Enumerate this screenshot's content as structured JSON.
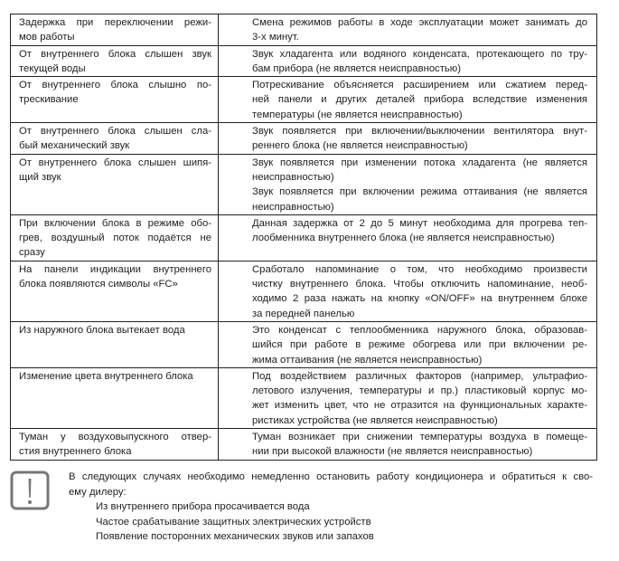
{
  "table": {
    "rows": [
      {
        "problem": [
          "Задержка при переключении режи-",
          "мов работы"
        ],
        "cause": [
          [
            "Смена режимов работы в ходе эксплуатации может занимать до",
            "3-х минут."
          ]
        ]
      },
      {
        "problem": [
          "От внутреннего блока слышен звук",
          "текущей воды"
        ],
        "cause": [
          [
            "Звук хладагента или водяного конденсата, протекающего по тру-",
            "бам прибора (не является неисправностью)"
          ]
        ]
      },
      {
        "problem": [
          "От внутреннего блока слышно по-",
          "трескивание"
        ],
        "cause": [
          [
            "Потрескивание объясняется расширением или сжатием перед-",
            "ней панели и других деталей прибора вследствие изменения",
            "температуры (не является неисправностью)"
          ]
        ]
      },
      {
        "problem": [
          "От внутреннего блока слышен сла-",
          "бый механический звук"
        ],
        "cause": [
          [
            "Звук появляется при включении/выключении вентилятора внут-",
            "реннего блока (не является неисправностью)"
          ]
        ]
      },
      {
        "problem": [
          "От внутреннего блока слышен шипя-",
          "щий звук"
        ],
        "cause": [
          [
            "Звук появляется при изменении потока хладагента (не является",
            "неисправностью)"
          ],
          [
            "Звук появляется при включении режима оттаивания (не является",
            "неисправностью)"
          ]
        ]
      },
      {
        "problem": [
          "При включении блока в режиме обо-",
          "грев, воздушный поток подаётся не",
          "сразу"
        ],
        "cause": [
          [
            "Данная задержка от 2 до 5 минут необходима для прогрева теп-",
            "лообменника внутреннего блока (не является неисправностью)"
          ]
        ]
      },
      {
        "problem": [
          "На панели индикации внутреннего",
          "блока появляются символы «FC»"
        ],
        "cause": [
          [
            "Сработало напоминание о том, что необходимо произвести",
            "чистку внутреннего блока. Чтобы отключить напоминание, необ-",
            "ходимо 2 раза нажать на кнопку «ON/OFF» на внутреннем блоке",
            "за передней панелью"
          ]
        ]
      },
      {
        "problem": [
          "Из наружного блока вытекает вода"
        ],
        "cause": [
          [
            "Это конденсат с теплообменника наружного блока, образовав-",
            "шийся при работе в режиме обогрева или при включении ре-",
            "жима оттаивания (не является неисправностью)"
          ]
        ]
      },
      {
        "problem": [
          "Изменение цвета внутреннего блока"
        ],
        "cause": [
          [
            "Под воздействием различных факторов (например, ультрафио-",
            "летового излучения, температуры и пр.) пластиковый корпус мо-",
            "жет изменить цвет, что не отразится на функциональных характе-",
            "ристиках устройства (не является неисправностью)"
          ]
        ]
      },
      {
        "problem": [
          "Туман у воздуховыпускного отвер-",
          "стия внутреннего блока"
        ],
        "cause": [
          [
            "Туман возникает при снижении температуры воздуха в помеще-",
            "нии при высокой влажности (не является неисправностью)"
          ]
        ]
      }
    ]
  },
  "warning": {
    "icon": "exclamation-icon",
    "intro": [
      "В следующих случаях необходимо немедленно остановить работу кондиционера и обратиться к сво-",
      "ему дилеру:"
    ],
    "items": [
      "Из внутреннего прибора просачивается вода",
      "Частое срабатывание защитных электрических устройств",
      "Появление посторонних механических звуков или запахов"
    ]
  }
}
